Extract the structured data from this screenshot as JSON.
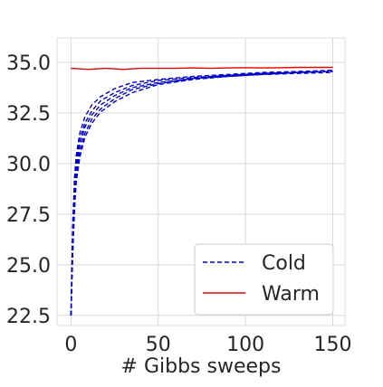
{
  "chart_data": {
    "type": "line",
    "title": "",
    "xlabel": "# Gibbs sweeps",
    "ylabel": "",
    "xlim": [
      -8,
      157
    ],
    "ylim": [
      22.0,
      36.2
    ],
    "grid": true,
    "legend_position": "lower-right",
    "x_ticks": [
      0,
      50,
      100,
      150
    ],
    "x_tick_labels": [
      "0",
      "50",
      "100",
      "150"
    ],
    "y_ticks": [
      22.5,
      25.0,
      27.5,
      30.0,
      32.5,
      35.0
    ],
    "y_tick_labels": [
      "22.5",
      "25.0",
      "27.5",
      "30.0",
      "32.5",
      "35.0"
    ],
    "colors": {
      "cold": "#0000cc",
      "warm": "#dd0000",
      "grid": "#d9d9d9",
      "legend_border": "#cccccc"
    },
    "legend": [
      {
        "label": "Cold",
        "color": "#0000cc",
        "style": "dashed"
      },
      {
        "label": "Warm",
        "color": "#dd0000",
        "style": "solid"
      }
    ],
    "x": [
      0,
      1,
      2,
      3,
      5,
      8,
      12,
      17,
      25,
      35,
      50,
      70,
      90,
      110,
      130,
      150
    ],
    "series": [
      {
        "group": "cold",
        "style": "dashed",
        "values": [
          22.5,
          27.0,
          29.3,
          30.4,
          31.5,
          32.3,
          32.9,
          33.3,
          33.7,
          34.0,
          34.15,
          34.3,
          34.4,
          34.5,
          34.55,
          34.6
        ]
      },
      {
        "group": "cold",
        "style": "dashed",
        "values": [
          22.5,
          26.6,
          28.9,
          30.1,
          31.2,
          32.0,
          32.6,
          33.1,
          33.5,
          33.85,
          34.1,
          34.25,
          34.35,
          34.45,
          34.5,
          34.55
        ]
      },
      {
        "group": "cold",
        "style": "dashed",
        "values": [
          22.5,
          26.2,
          28.5,
          29.8,
          30.9,
          31.8,
          32.4,
          32.9,
          33.35,
          33.75,
          34.0,
          34.2,
          34.35,
          34.45,
          34.5,
          34.6
        ]
      },
      {
        "group": "cold",
        "style": "dashed",
        "values": [
          22.5,
          25.8,
          28.1,
          29.4,
          30.6,
          31.5,
          32.2,
          32.7,
          33.2,
          33.65,
          33.95,
          34.2,
          34.3,
          34.4,
          34.5,
          34.55
        ]
      },
      {
        "group": "cold",
        "style": "dashed",
        "values": [
          22.5,
          25.5,
          27.7,
          29.1,
          30.3,
          31.3,
          32.0,
          32.55,
          33.05,
          33.5,
          33.9,
          34.15,
          34.3,
          34.4,
          34.45,
          34.5
        ]
      },
      {
        "group": "warm",
        "style": "solid",
        "x": [
          0,
          10,
          20,
          30,
          40,
          50,
          60,
          70,
          80,
          90,
          100,
          110,
          120,
          130,
          140,
          150
        ],
        "values": [
          34.7,
          34.65,
          34.7,
          34.65,
          34.7,
          34.7,
          34.7,
          34.72,
          34.7,
          34.72,
          34.73,
          34.72,
          34.73,
          34.75,
          34.75,
          34.75
        ]
      }
    ]
  }
}
